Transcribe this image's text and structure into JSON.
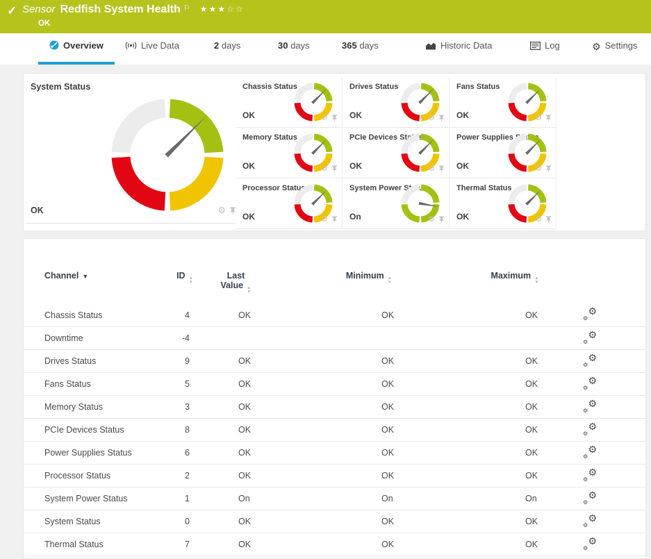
{
  "header": {
    "type_label": "Sensor",
    "title": "Redfish System Health",
    "status": "OK",
    "rating": {
      "filled_stars": "★★★",
      "empty_stars": "☆☆",
      "filled": 3,
      "total": 5
    },
    "flag_icon": "⚐",
    "check_icon": "✓",
    "bar_color": "#b6c31d"
  },
  "tabs": [
    {
      "label": "Overview",
      "active": true
    },
    {
      "label": "Live Data",
      "active": false
    },
    {
      "prefix": "2",
      "label": "days",
      "active": false
    },
    {
      "prefix": "30",
      "label": "days",
      "active": false
    },
    {
      "prefix": "365",
      "label": "days",
      "active": false
    },
    {
      "label": "Historic Data",
      "active": false
    },
    {
      "label": "Log",
      "active": false
    },
    {
      "label": "Settings",
      "active": false
    }
  ],
  "system_status_panel": {
    "title": "System Status",
    "value": "OK",
    "gauge": {
      "palette": "status",
      "needle_deg": 45
    }
  },
  "mini_gauges": [
    {
      "title": "Chassis Status",
      "value": "OK",
      "palette": "status",
      "needle_deg": 45
    },
    {
      "title": "Drives Status",
      "value": "OK",
      "palette": "status",
      "needle_deg": 45
    },
    {
      "title": "Fans Status",
      "value": "OK",
      "palette": "status",
      "needle_deg": 45
    },
    {
      "title": "Memory Status",
      "value": "OK",
      "palette": "status",
      "needle_deg": 45
    },
    {
      "title": "PCIe Devices Status",
      "value": "OK",
      "palette": "status",
      "needle_deg": 45
    },
    {
      "title": "Power Supplies Status",
      "value": "OK",
      "palette": "status",
      "needle_deg": 45
    },
    {
      "title": "Processor Status",
      "value": "OK",
      "palette": "status",
      "needle_deg": 45
    },
    {
      "title": "System Power Status",
      "value": "On",
      "palette": "power",
      "needle_deg": 100
    },
    {
      "title": "Thermal Status",
      "value": "OK",
      "palette": "status",
      "needle_deg": 45
    }
  ],
  "gauges": {
    "palettes": {
      "status": [
        "#a4c113",
        "#f0c400",
        "#e20613",
        "#ececec"
      ],
      "power": [
        "#a4c113",
        "#a4c113",
        "#a4c113",
        "#ececec"
      ]
    },
    "needle_color": "#6a6a6a"
  },
  "table": {
    "headers": {
      "channel": "Channel",
      "id": "ID",
      "last_line1": "Last",
      "last_line2": "Value",
      "minimum": "Minimum",
      "maximum": "Maximum"
    },
    "rows": [
      {
        "channel": "Chassis Status",
        "id": "4",
        "last": "OK",
        "min": "OK",
        "max": "OK"
      },
      {
        "channel": "Downtime",
        "id": "-4",
        "last": "",
        "min": "",
        "max": ""
      },
      {
        "channel": "Drives Status",
        "id": "9",
        "last": "OK",
        "min": "OK",
        "max": "OK"
      },
      {
        "channel": "Fans Status",
        "id": "5",
        "last": "OK",
        "min": "OK",
        "max": "OK"
      },
      {
        "channel": "Memory Status",
        "id": "3",
        "last": "OK",
        "min": "OK",
        "max": "OK"
      },
      {
        "channel": "PCIe Devices Status",
        "id": "8",
        "last": "OK",
        "min": "OK",
        "max": "OK"
      },
      {
        "channel": "Power Supplies Status",
        "id": "6",
        "last": "OK",
        "min": "OK",
        "max": "OK"
      },
      {
        "channel": "Processor Status",
        "id": "2",
        "last": "OK",
        "min": "OK",
        "max": "OK"
      },
      {
        "channel": "System Power Status",
        "id": "1",
        "last": "On",
        "min": "On",
        "max": "On"
      },
      {
        "channel": "System Status",
        "id": "0",
        "last": "OK",
        "min": "OK",
        "max": "OK"
      },
      {
        "channel": "Thermal Status",
        "id": "7",
        "last": "OK",
        "min": "OK",
        "max": "OK"
      }
    ]
  }
}
